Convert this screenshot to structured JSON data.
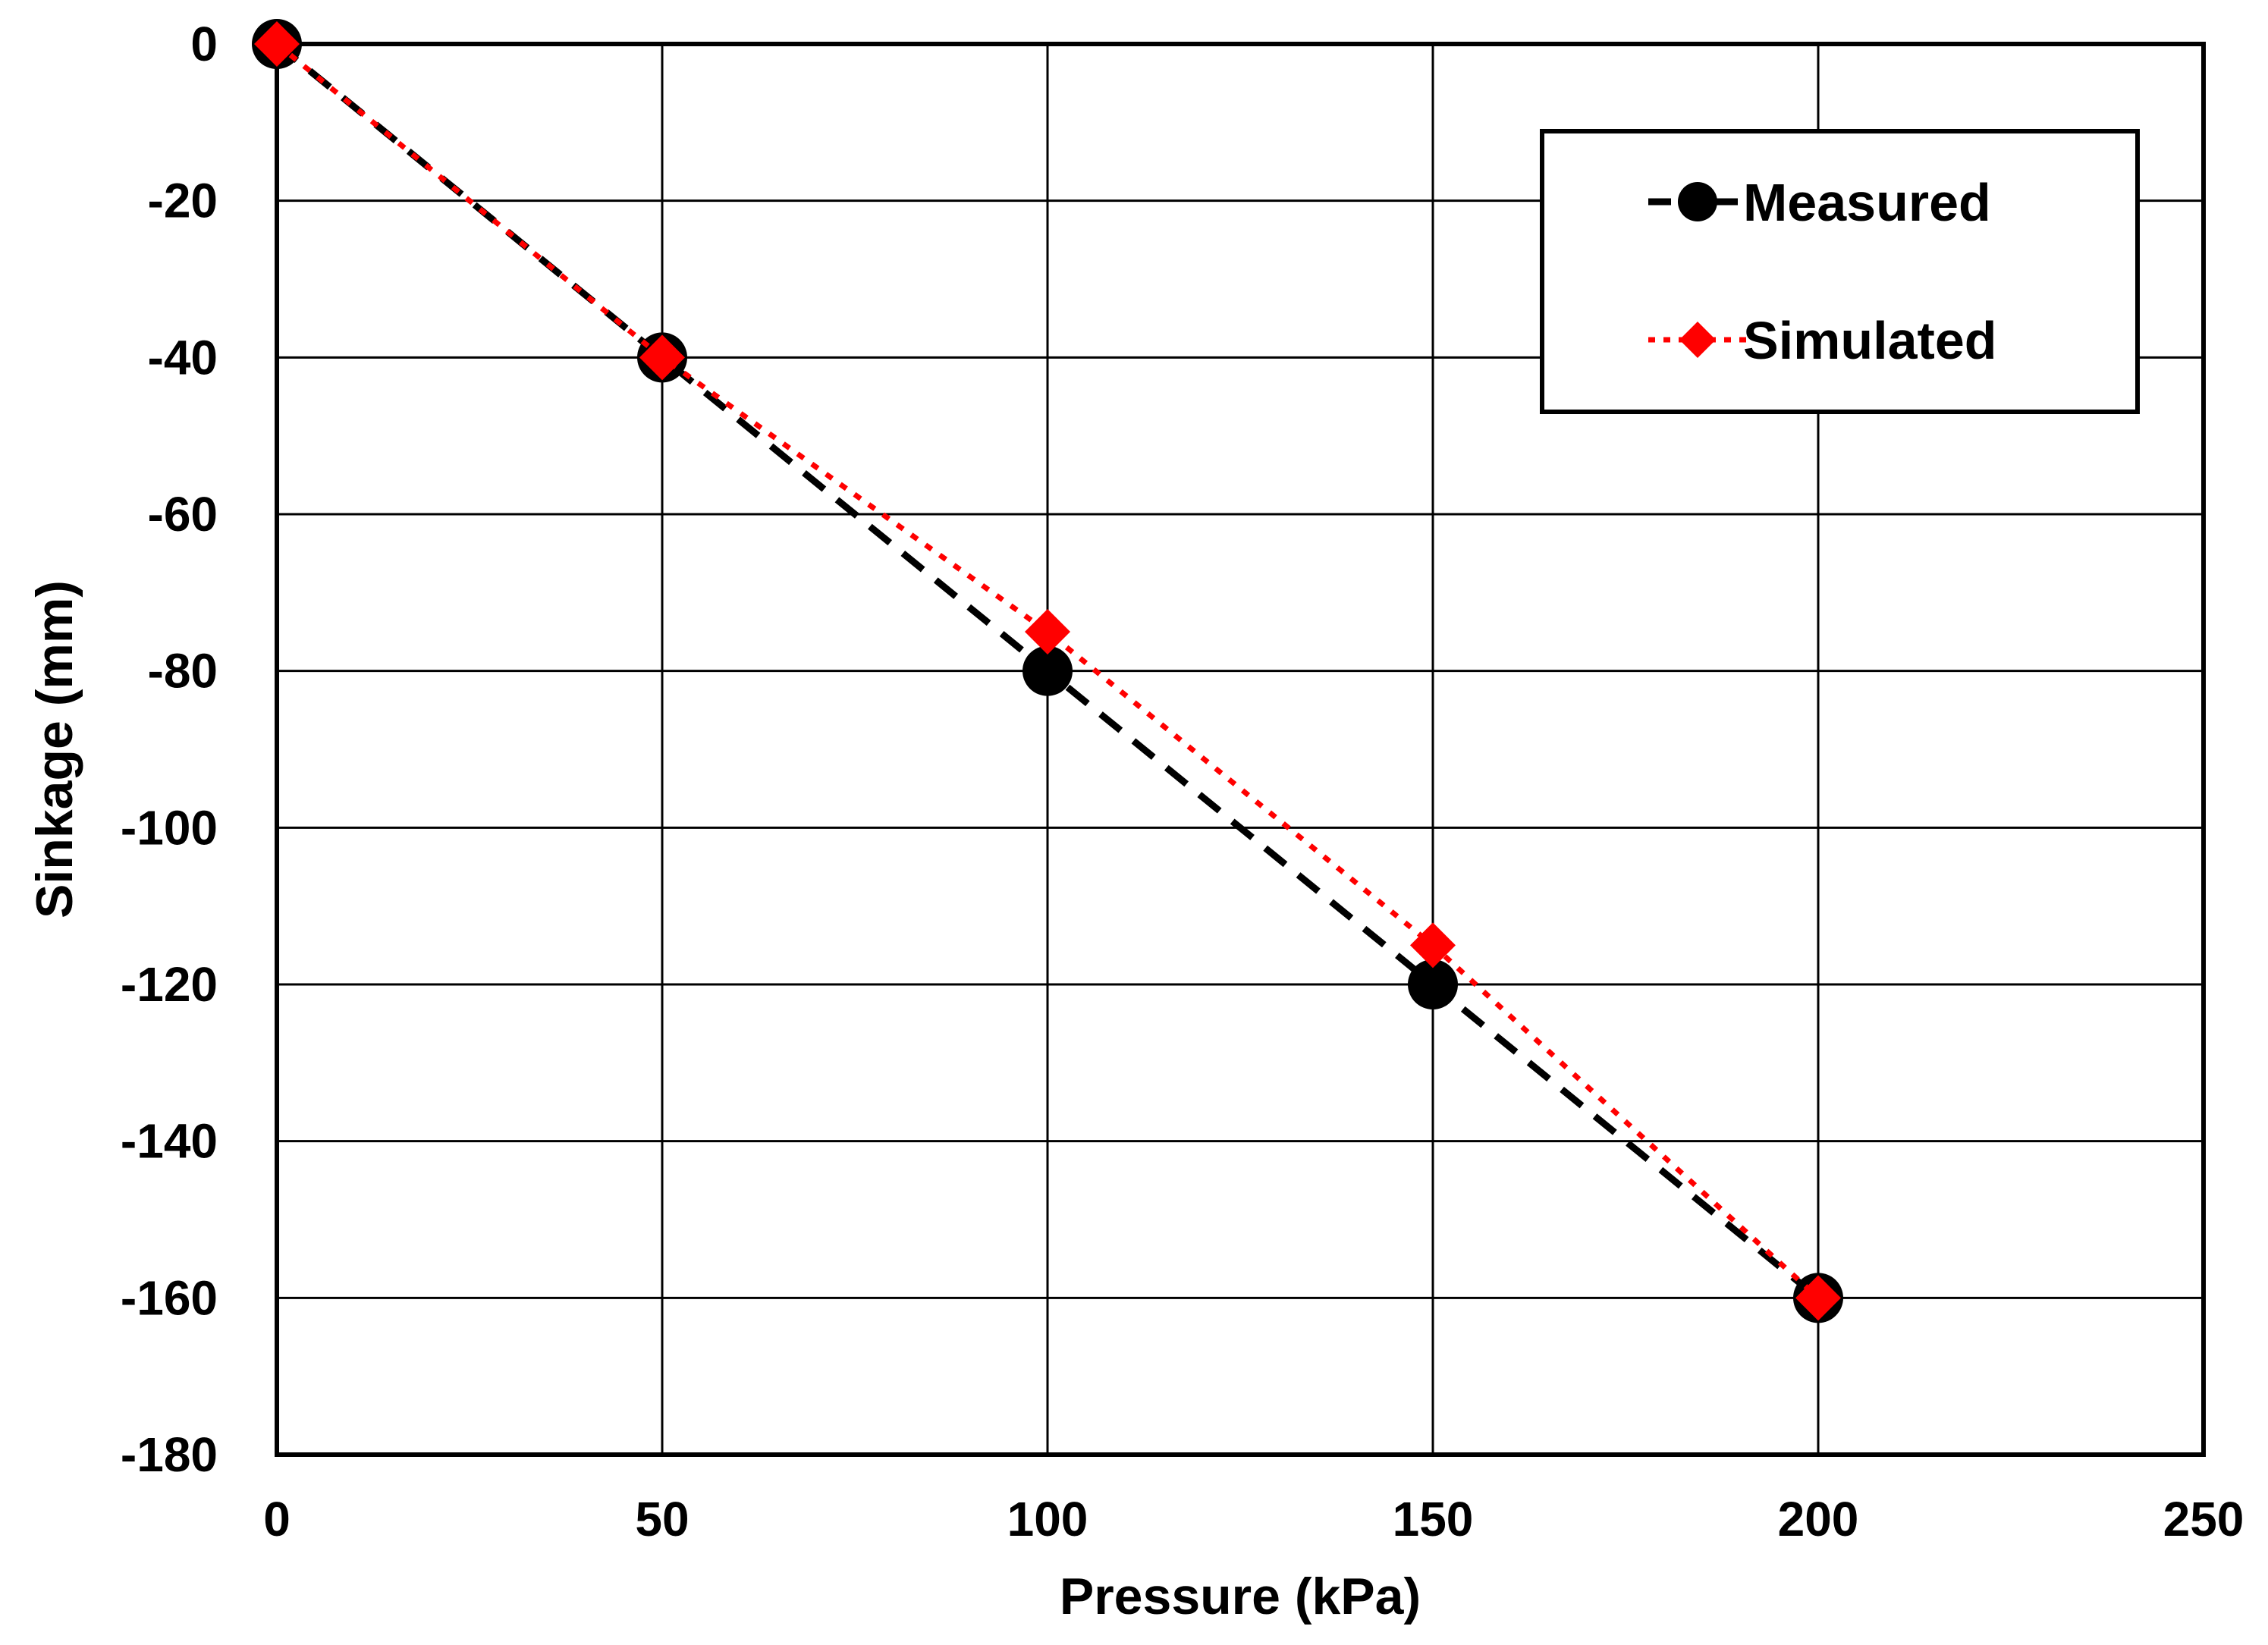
{
  "chart_data": {
    "type": "line",
    "title": "",
    "xlabel": "Pressure (kPa)",
    "ylabel": "Sinkage (mm)",
    "xlim": [
      0,
      250
    ],
    "ylim": [
      -180,
      0
    ],
    "xticks": [
      0,
      50,
      100,
      150,
      200,
      250
    ],
    "yticks": [
      0,
      -20,
      -40,
      -60,
      -80,
      -100,
      -120,
      -140,
      -160,
      -180
    ],
    "grid": true,
    "legend_position": "top-right",
    "series": [
      {
        "name": "Measured",
        "x": [
          0,
          50,
          100,
          150,
          200
        ],
        "values": [
          0,
          -40,
          -80,
          -120,
          -160
        ],
        "color": "#000000",
        "line_style": "dashed",
        "marker": "circle"
      },
      {
        "name": "Simulated",
        "x": [
          0,
          50,
          100,
          150,
          200
        ],
        "values": [
          0,
          -40,
          -75,
          -115,
          -160
        ],
        "color": "#ff0000",
        "line_style": "dotted",
        "marker": "diamond"
      }
    ]
  }
}
